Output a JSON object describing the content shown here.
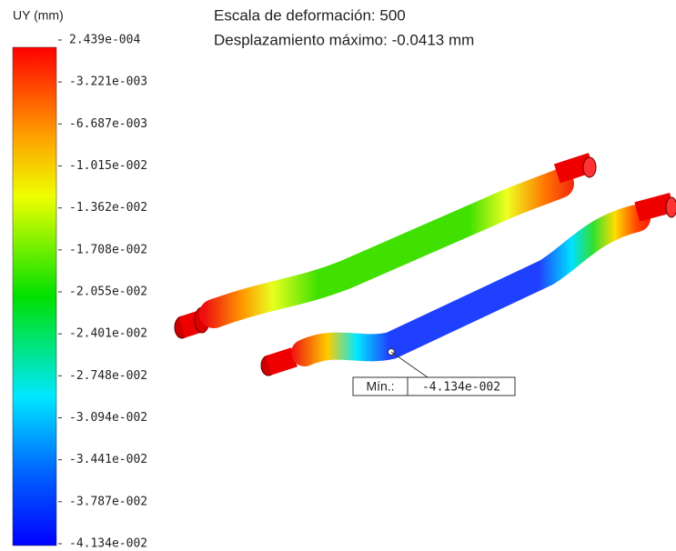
{
  "legend": {
    "title": "UY (mm)",
    "labels": [
      "2.439e-004",
      "-3.221e-003",
      "-6.687e-003",
      "-1.015e-002",
      "-1.362e-002",
      "-1.708e-002",
      "-2.055e-002",
      "-2.401e-002",
      "-2.748e-002",
      "-3.094e-002",
      "-3.441e-002",
      "-3.787e-002",
      "-4.134e-002"
    ]
  },
  "header": {
    "scale": "Escala de deformación: 500",
    "max_displacement": "Desplazamiento máximo: -0.0413 mm"
  },
  "probe": {
    "label": "Mín.:",
    "value": "-4.134e-002"
  }
}
